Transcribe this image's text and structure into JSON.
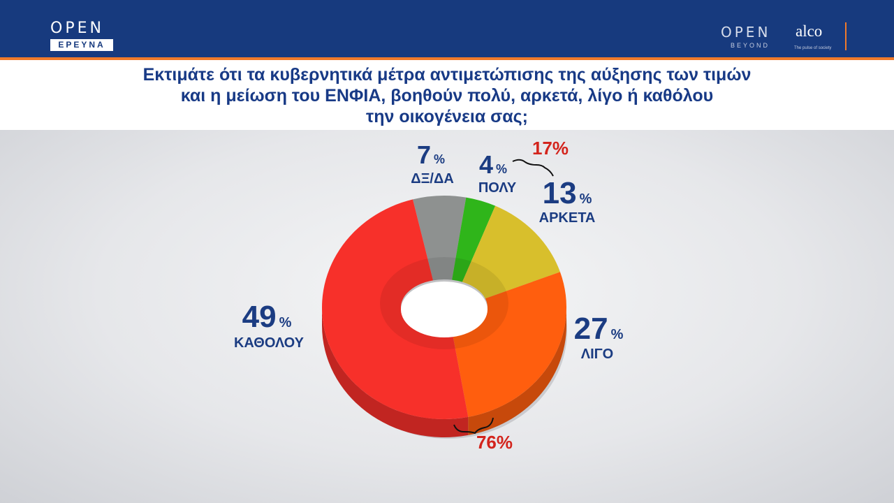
{
  "header": {
    "left_logo": {
      "word": "OPEN",
      "sub": "ΕΡΕΥΝΑ"
    },
    "right_logo": {
      "word": "OPEN",
      "sub": "BEYOND",
      "brand": "alco",
      "tagline": "The pulse of society"
    }
  },
  "title_lines": [
    "Εκτιμάτε ότι τα κυβερνητικά μέτρα αντιμετώπισης της αύξησης των τιμών",
    "και η μείωση του ΕΝΦΙΑ, βοηθούν πολύ, αρκετά, λίγο ή καθόλου",
    "την οικογένεια σας;"
  ],
  "chart_data": {
    "type": "pie",
    "subtype": "donut-3d",
    "unit": "%",
    "slices": [
      {
        "label": "ΔΞ/ΔΑ",
        "value": 7,
        "color": "#8e9190"
      },
      {
        "label": "ΠΟΛΥ",
        "value": 4,
        "color": "#2fb51a"
      },
      {
        "label": "ΑΡΚΕΤΑ",
        "value": 13,
        "color": "#d8bf2c"
      },
      {
        "label": "ΛΙΓΟ",
        "value": 27,
        "color": "#ff5e0e"
      },
      {
        "label": "ΚΑΘΟΛΟΥ",
        "value": 49,
        "color": "#f7302a"
      }
    ],
    "groups": [
      {
        "label": "17%",
        "members": [
          "ΠΟΛΥ",
          "ΑΡΚΕΤΑ"
        ]
      },
      {
        "label": "76%",
        "members": [
          "ΛΙΓΟ",
          "ΚΑΘΟΛΟΥ"
        ]
      }
    ]
  }
}
